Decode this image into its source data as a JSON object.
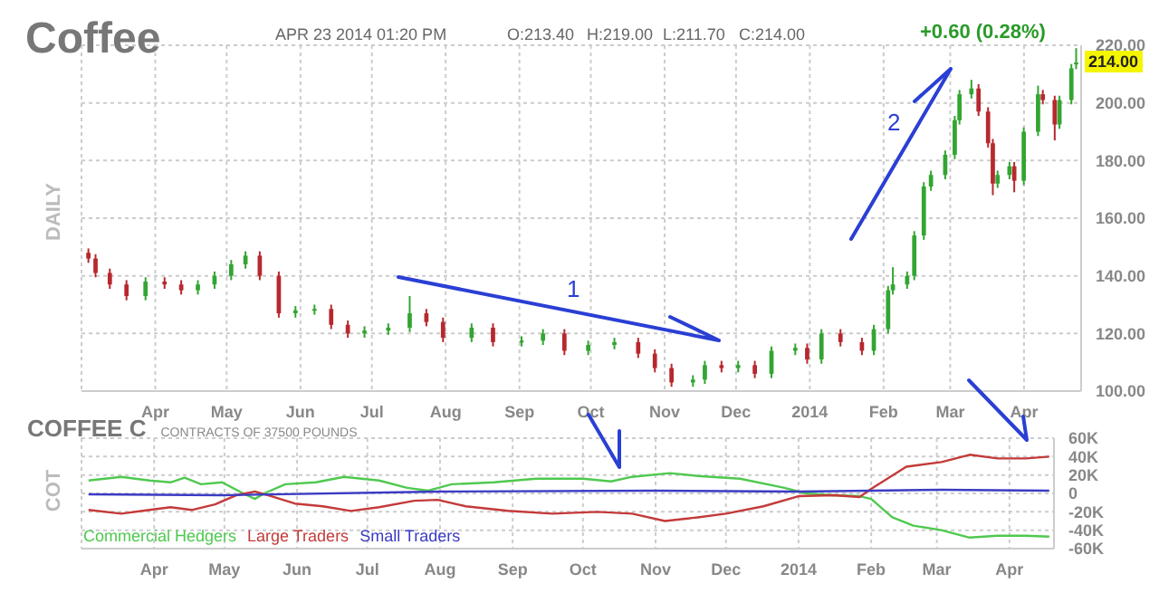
{
  "chart_data": [
    {
      "type": "candlestick",
      "title": "Coffee",
      "ylabel": "DAILY",
      "annotations": [
        "APR 23 2014 01:20 PM",
        "O:213.40",
        "H:219.00",
        "L:211.70",
        "C:214.00",
        "+0.60 (0.28%)",
        "1",
        "2",
        {
          "text": "214.00",
          "y": 214
        }
      ],
      "x": [
        "2013-03-04",
        "2013-03-07",
        "2013-03-13",
        "2013-03-20",
        "2013-03-28",
        "2013-04-05",
        "2013-04-12",
        "2013-04-19",
        "2013-04-26",
        "2013-05-03",
        "2013-05-09",
        "2013-05-15",
        "2013-05-23",
        "2013-05-30",
        "2013-06-07",
        "2013-06-14",
        "2013-06-21",
        "2013-06-28",
        "2013-07-08",
        "2013-07-17",
        "2013-07-24",
        "2013-07-31",
        "2013-08-12",
        "2013-08-21",
        "2013-09-02",
        "2013-09-11",
        "2013-09-20",
        "2013-09-30",
        "2013-10-11",
        "2013-10-21",
        "2013-10-28",
        "2013-11-04",
        "2013-11-13",
        "2013-11-18",
        "2013-11-25",
        "2013-12-02",
        "2013-12-09",
        "2013-12-16",
        "2013-12-26",
        "2013-12-31",
        "2014-01-06",
        "2014-01-14",
        "2014-01-23",
        "2014-01-28",
        "2014-02-03",
        "2014-02-05",
        "2014-02-11",
        "2014-02-14",
        "2014-02-18",
        "2014-02-21",
        "2014-02-27",
        "2014-03-03",
        "2014-03-05",
        "2014-03-10",
        "2014-03-13",
        "2014-03-17",
        "2014-03-19",
        "2014-03-21",
        "2014-03-26",
        "2014-03-28",
        "2014-04-01",
        "2014-04-07",
        "2014-04-09",
        "2014-04-14",
        "2014-04-16",
        "2014-04-21",
        "2014-04-23"
      ],
      "ohlc": [
        [
          148,
          149.5,
          144.5,
          146
        ],
        [
          146,
          147.5,
          139.5,
          141
        ],
        [
          141,
          142.5,
          135.5,
          137
        ],
        [
          137,
          138.5,
          131.5,
          133
        ],
        [
          133,
          139.5,
          131.5,
          138
        ],
        [
          138,
          139.5,
          135.5,
          137
        ],
        [
          137,
          138.5,
          133.5,
          135
        ],
        [
          135,
          138.5,
          133.5,
          137
        ],
        [
          137,
          141.5,
          135.5,
          140
        ],
        [
          140,
          145.5,
          138.5,
          144
        ],
        [
          144,
          148.5,
          142.5,
          147
        ],
        [
          147,
          148.5,
          138.5,
          140
        ],
        [
          140,
          141.5,
          125.5,
          127
        ],
        [
          127,
          129.5,
          125.5,
          128
        ],
        [
          128,
          130,
          126.5,
          128.5
        ],
        [
          128.5,
          130,
          121.5,
          123
        ],
        [
          123,
          124.5,
          118.5,
          120
        ],
        [
          120,
          122.5,
          118.5,
          121
        ],
        [
          121,
          123.5,
          119.5,
          122
        ],
        [
          122,
          133,
          120.5,
          127
        ],
        [
          127,
          128.5,
          122.5,
          124
        ],
        [
          124,
          125.5,
          117,
          118.5
        ],
        [
          118.5,
          123.5,
          117,
          122
        ],
        [
          122,
          123.5,
          115.5,
          117
        ],
        [
          117,
          119,
          115.5,
          117.5
        ],
        [
          117.5,
          121.5,
          116,
          120
        ],
        [
          120,
          121.5,
          112.5,
          114
        ],
        [
          114,
          117.5,
          112.5,
          116
        ],
        [
          116,
          118.5,
          114.5,
          117
        ],
        [
          117,
          118.5,
          111.5,
          113
        ],
        [
          113,
          114.5,
          106.5,
          108
        ],
        [
          108,
          109.5,
          101.5,
          103
        ],
        [
          103,
          105.5,
          101.5,
          104
        ],
        [
          104,
          110.5,
          102.5,
          109
        ],
        [
          109,
          110.5,
          106.5,
          108
        ],
        [
          108,
          110.5,
          106.5,
          109
        ],
        [
          109,
          110.5,
          104.5,
          106
        ],
        [
          106,
          115.5,
          104.5,
          114
        ],
        [
          114,
          116.5,
          112.5,
          115
        ],
        [
          115,
          116.5,
          109.5,
          111
        ],
        [
          111,
          121.5,
          109.5,
          120
        ],
        [
          120,
          121.5,
          115.5,
          117
        ],
        [
          117,
          118.5,
          112.5,
          114
        ],
        [
          114,
          123,
          112.5,
          121.5
        ],
        [
          121.5,
          136.5,
          120,
          135
        ],
        [
          135,
          143,
          133.5,
          137
        ],
        [
          137,
          141.5,
          135.5,
          140
        ],
        [
          140,
          155.5,
          138.5,
          154
        ],
        [
          154,
          172.5,
          152.5,
          171
        ],
        [
          171,
          176.5,
          169.5,
          175
        ],
        [
          175,
          183.5,
          173.5,
          182
        ],
        [
          182,
          195.5,
          180.5,
          194
        ],
        [
          194,
          204.5,
          192.5,
          203
        ],
        [
          203,
          208,
          201.5,
          205
        ],
        [
          205,
          206.5,
          195.5,
          197
        ],
        [
          197,
          198.5,
          184.5,
          186
        ],
        [
          186,
          187.5,
          168,
          172
        ],
        [
          172,
          176.5,
          170.5,
          175
        ],
        [
          175,
          179.5,
          173.5,
          178
        ],
        [
          178,
          179.5,
          169,
          173
        ],
        [
          173,
          191.5,
          171.5,
          190
        ],
        [
          190,
          206,
          188.5,
          203
        ],
        [
          203,
          204.5,
          199.5,
          201
        ],
        [
          201,
          202.5,
          187,
          192.5
        ],
        [
          192.5,
          202.5,
          191,
          201
        ],
        [
          201,
          213.5,
          199.5,
          212
        ],
        [
          213.4,
          219,
          211.7,
          214
        ]
      ],
      "colors": [
        "#b7282e",
        "#b7282e",
        "#b7282e",
        "#b7282e",
        "#33a532",
        "#b7282e",
        "#b7282e",
        "#33a532",
        "#33a532",
        "#33a532",
        "#33a532",
        "#b7282e",
        "#b7282e",
        "#33a532",
        "#33a532",
        "#b7282e",
        "#b7282e",
        "#33a532",
        "#33a532",
        "#33a532",
        "#b7282e",
        "#b7282e",
        "#33a532",
        "#b7282e",
        "#33a532",
        "#33a532",
        "#b7282e",
        "#33a532",
        "#33a532",
        "#b7282e",
        "#b7282e",
        "#b7282e",
        "#33a532",
        "#33a532",
        "#b7282e",
        "#33a532",
        "#b7282e",
        "#33a532",
        "#33a532",
        "#b7282e",
        "#33a532",
        "#b7282e",
        "#b7282e",
        "#33a532",
        "#33a532",
        "#33a532",
        "#33a532",
        "#33a532",
        "#33a532",
        "#33a532",
        "#33a532",
        "#33a532",
        "#33a532",
        "#33a532",
        "#b7282e",
        "#b7282e",
        "#b7282e",
        "#33a532",
        "#33a532",
        "#b7282e",
        "#33a532",
        "#33a532",
        "#b7282e",
        "#b7282e",
        "#33a532",
        "#33a532",
        "#33a532"
      ],
      "xlim": [
        "2013-03-01",
        "2014-04-25"
      ],
      "xticks": [
        {
          "value": "2013-04-01",
          "label": "Apr"
        },
        {
          "value": "2013-05-01",
          "label": "May"
        },
        {
          "value": "2013-06-01",
          "label": "Jun"
        },
        {
          "value": "2013-07-01",
          "label": "Jul"
        },
        {
          "value": "2013-08-01",
          "label": "Aug"
        },
        {
          "value": "2013-09-01",
          "label": "Sep"
        },
        {
          "value": "2013-10-01",
          "label": "Oct"
        },
        {
          "value": "2013-11-01",
          "label": "Nov"
        },
        {
          "value": "2013-12-01",
          "label": "Dec"
        },
        {
          "value": "2014-01-01",
          "label": "2014"
        },
        {
          "value": "2014-02-01",
          "label": "Feb"
        },
        {
          "value": "2014-03-01",
          "label": "Mar"
        },
        {
          "value": "2014-04-01",
          "label": "Apr"
        }
      ],
      "ylim": [
        100,
        220
      ],
      "yticks": [
        {
          "value": 100,
          "label": "100.00"
        },
        {
          "value": 120,
          "label": "120.00"
        },
        {
          "value": 140,
          "label": "140.00"
        },
        {
          "value": 160,
          "label": "160.00"
        },
        {
          "value": 180,
          "label": "180.00"
        },
        {
          "value": 200,
          "label": "200.00"
        },
        {
          "value": 220,
          "label": "220.00"
        }
      ],
      "grid": true
    },
    {
      "type": "line",
      "title": "COFFEE C",
      "subtitle": "CONTRACTS OF 37500 POUNDS",
      "ylabel": "COT",
      "legend": "bottom left",
      "grid": true,
      "xlim": [
        "2013-03-01",
        "2014-04-20"
      ],
      "xticks": [
        {
          "value": "2013-04-01",
          "label": "Apr"
        },
        {
          "value": "2013-05-01",
          "label": "May"
        },
        {
          "value": "2013-06-01",
          "label": "Jun"
        },
        {
          "value": "2013-07-01",
          "label": "Jul"
        },
        {
          "value": "2013-08-01",
          "label": "Aug"
        },
        {
          "value": "2013-09-01",
          "label": "Sep"
        },
        {
          "value": "2013-10-01",
          "label": "Oct"
        },
        {
          "value": "2013-11-01",
          "label": "Nov"
        },
        {
          "value": "2013-12-01",
          "label": "Dec"
        },
        {
          "value": "2014-01-01",
          "label": "2014"
        },
        {
          "value": "2014-02-01",
          "label": "Feb"
        },
        {
          "value": "2014-03-01",
          "label": "Mar"
        },
        {
          "value": "2014-04-01",
          "label": "Apr"
        }
      ],
      "ylim": [
        -60000,
        60000
      ],
      "yticks": [
        {
          "value": -60000,
          "label": "-60K"
        },
        {
          "value": -40000,
          "label": "-40K"
        },
        {
          "value": -20000,
          "label": "-20K"
        },
        0,
        {
          "value": 20000,
          "label": "20K"
        },
        {
          "value": 40000,
          "label": "40K"
        },
        {
          "value": 60000,
          "label": "60K"
        }
      ],
      "series": [
        {
          "name": "Commercial Hedgers",
          "color": "#4fc94f",
          "x": [
            "2013-03-04",
            "2013-03-18",
            "2013-03-30",
            "2013-04-08",
            "2013-04-14",
            "2013-04-21",
            "2013-04-30",
            "2013-05-09",
            "2013-05-14",
            "2013-05-18",
            "2013-05-27",
            "2013-06-09",
            "2013-06-21",
            "2013-07-06",
            "2013-07-18",
            "2013-07-27",
            "2013-08-06",
            "2013-08-24",
            "2013-09-11",
            "2013-10-01",
            "2013-10-13",
            "2013-10-22",
            "2013-11-07",
            "2013-11-19",
            "2013-12-07",
            "2013-12-26",
            "2014-01-04",
            "2014-01-16",
            "2014-01-27",
            "2014-02-01",
            "2014-02-10",
            "2014-02-19",
            "2014-03-03",
            "2014-03-15",
            "2014-03-27",
            "2014-04-08",
            "2014-04-18"
          ],
          "values": [
            14000,
            18000,
            14000,
            12000,
            17000,
            10000,
            12000,
            0,
            -6000,
            0,
            10000,
            12000,
            18000,
            14000,
            6000,
            3000,
            10000,
            12000,
            16000,
            16000,
            13000,
            18000,
            22000,
            19000,
            16000,
            6000,
            0,
            -2000,
            -3000,
            -6000,
            -26000,
            -35000,
            -40000,
            -48000,
            -46000,
            -46000,
            -47000
          ]
        },
        {
          "name": "Large Traders",
          "color": "#c43a3a",
          "x": [
            "2013-03-04",
            "2013-03-18",
            "2013-03-30",
            "2013-04-08",
            "2013-04-17",
            "2013-04-27",
            "2013-05-06",
            "2013-05-14",
            "2013-05-21",
            "2013-05-31",
            "2013-06-12",
            "2013-06-24",
            "2013-07-06",
            "2013-07-21",
            "2013-07-31",
            "2013-08-12",
            "2013-08-30",
            "2013-09-18",
            "2013-10-07",
            "2013-10-22",
            "2013-11-05",
            "2013-11-19",
            "2013-12-01",
            "2013-12-17",
            "2014-01-01",
            "2014-01-16",
            "2014-01-27",
            "2014-02-01",
            "2014-02-16",
            "2014-03-03",
            "2014-03-15",
            "2014-03-27",
            "2014-04-08",
            "2014-04-18"
          ],
          "values": [
            -18000,
            -22000,
            -18000,
            -15000,
            -18000,
            -12000,
            -2000,
            2000,
            -3000,
            -11000,
            -14000,
            -19000,
            -15000,
            -8000,
            -7000,
            -14000,
            -19000,
            -22000,
            -20000,
            -22000,
            -30000,
            -26000,
            -22000,
            -14000,
            -3000,
            -2000,
            -4000,
            5000,
            29000,
            34000,
            42000,
            38000,
            38000,
            40000
          ]
        },
        {
          "name": "Small Traders",
          "color": "#3b3bc4",
          "x": [
            "2013-03-04",
            "2013-04-30",
            "2013-07-31",
            "2013-11-01",
            "2014-01-01",
            "2014-02-01",
            "2014-03-03",
            "2014-04-18"
          ],
          "values": [
            -1000,
            -2000,
            2000,
            3000,
            2000,
            3000,
            4000,
            3000
          ]
        }
      ]
    }
  ]
}
